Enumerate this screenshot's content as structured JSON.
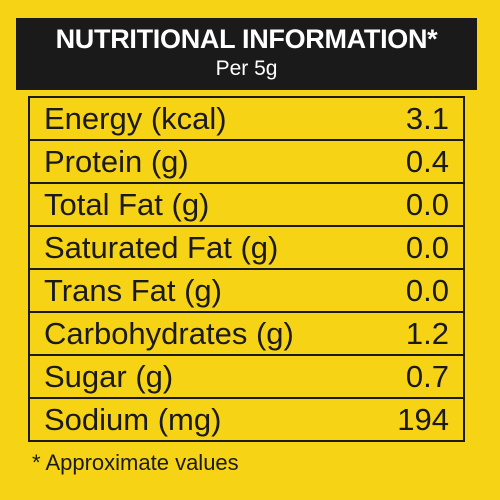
{
  "header": {
    "title": "NUTRITIONAL INFORMATION*",
    "subtitle": "Per 5g"
  },
  "rows": [
    {
      "name": "Energy (kcal)",
      "value": "3.1"
    },
    {
      "name": "Protein (g)",
      "value": "0.4"
    },
    {
      "name": "Total Fat (g)",
      "value": "0.0"
    },
    {
      "name": "Saturated Fat (g)",
      "value": "0.0"
    },
    {
      "name": "Trans Fat (g)",
      "value": "0.0"
    },
    {
      "name": "Carbohydrates (g)",
      "value": "1.2"
    },
    {
      "name": "Sugar (g)",
      "value": "0.7"
    },
    {
      "name": "Sodium (mg)",
      "value": "194"
    }
  ],
  "footnote": "* Approximate values",
  "colors": {
    "background": "#f7d316",
    "header": "#1a1a1a",
    "text": "#1a1a1a"
  }
}
